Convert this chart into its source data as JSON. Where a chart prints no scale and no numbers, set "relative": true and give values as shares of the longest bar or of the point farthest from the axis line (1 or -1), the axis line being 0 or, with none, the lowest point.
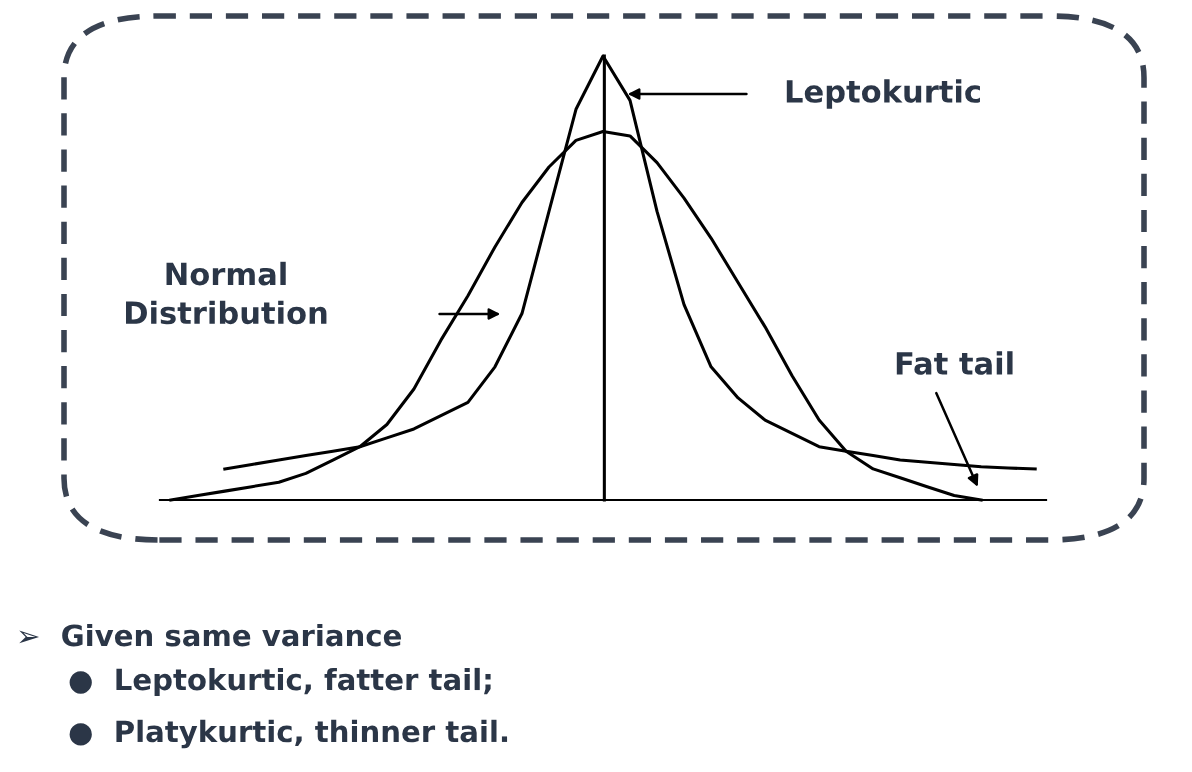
{
  "chart_data": {
    "type": "line",
    "relative": true,
    "legend": false,
    "grid": false,
    "marker": "none",
    "line_style": "solid",
    "categories": [
      null,
      null,
      null,
      null,
      null,
      null,
      null,
      null,
      null,
      null,
      null,
      null,
      null,
      null,
      null,
      null,
      null,
      null,
      null,
      null,
      null,
      null,
      null,
      null,
      null,
      null,
      null,
      null,
      null,
      null,
      null,
      null,
      null
    ],
    "series": [
      {
        "color": "#000000",
        "values": [
          0,
          0.01,
          0.02,
          0.03,
          0.04,
          0.06,
          0.09,
          0.12,
          0.17,
          0.25,
          0.36,
          0.46,
          0.57,
          0.67,
          0.75,
          0.81,
          0.83,
          0.82,
          0.76,
          0.68,
          0.59,
          0.49,
          0.39,
          0.28,
          0.18,
          0.11,
          0.07,
          0.05,
          0.03,
          0.01,
          0,
          null,
          null
        ]
      },
      {
        "color": "#000000",
        "values": [
          null,
          null,
          0.07,
          0.08,
          0.09,
          0.1,
          0.11,
          0.12,
          0.14,
          0.16,
          0.19,
          0.22,
          0.3,
          0.42,
          0.65,
          0.88,
          1.0,
          0.9,
          0.65,
          0.44,
          0.3,
          0.23,
          0.18,
          0.15,
          0.12,
          0.11,
          0.1,
          0.09,
          0.085,
          0.08,
          0.075,
          0.072,
          0.07
        ]
      }
    ],
    "annotations": [
      "Normal\nDistribution",
      "Leptokurtic",
      "Fat tail",
      "➢  Given same variance",
      "●  Leptokurtic, fatter tail;",
      "●  Platykurtic, thinner tail."
    ]
  }
}
